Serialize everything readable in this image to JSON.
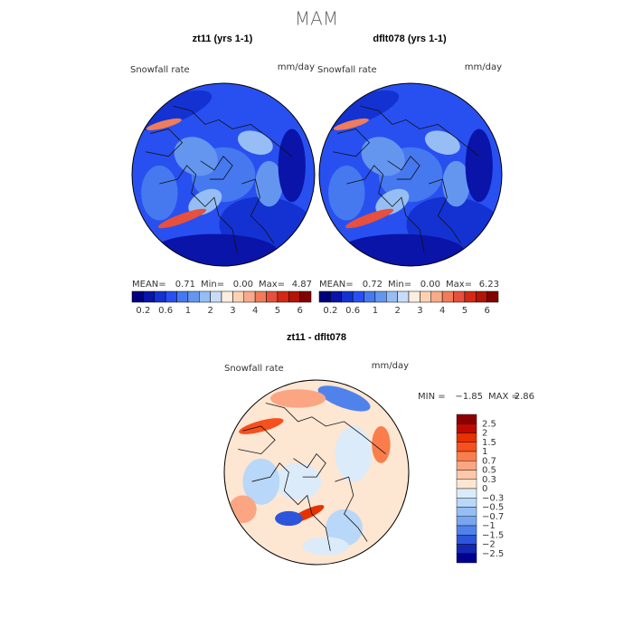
{
  "title": "MAM",
  "panels": [
    {
      "title": "zt11 (yrs 1-1)",
      "variable": "Snowfall rate",
      "units": "mm/day",
      "stats": {
        "mean_label": "MEAN=",
        "mean": "0.71",
        "min_label": "Min=",
        "min": "0.00",
        "max_label": "Max=",
        "max": "4.87"
      }
    },
    {
      "title": "dflt078 (yrs 1-1)",
      "variable": "Snowfall rate",
      "units": "mm/day",
      "stats": {
        "mean_label": "MEAN=",
        "mean": "0.72",
        "min_label": "Min=",
        "min": "0.00",
        "max_label": "Max=",
        "max": "6.23"
      }
    }
  ],
  "colorbar": {
    "labels": [
      "0.2",
      "0.6",
      "1",
      "2",
      "3",
      "4",
      "5",
      "6"
    ],
    "colors": [
      "#00007f",
      "#0a14a8",
      "#1432d2",
      "#2850f0",
      "#4678f0",
      "#6496f0",
      "#96bef5",
      "#c8dcf8",
      "#fdeee0",
      "#fcd2b4",
      "#f8aa8a",
      "#f07c5a",
      "#e6503c",
      "#d22814",
      "#b41408",
      "#820000"
    ]
  },
  "difference": {
    "title": "zt11 - dflt078",
    "variable": "Snowfall rate",
    "units": "mm/day",
    "stats": {
      "min_label": "MIN =",
      "min": "−1.85",
      "max_label": "MAX =",
      "max": "2.86"
    }
  },
  "diff_colorbar": {
    "labels": [
      "2.5",
      "2",
      "1.5",
      "1",
      "0.7",
      "0.5",
      "0.3",
      "0",
      "−0.3",
      "−0.5",
      "−0.7",
      "−1",
      "−1.5",
      "−2",
      "−2.5"
    ],
    "colors": [
      "#8c0000",
      "#be0a00",
      "#e63200",
      "#f5501e",
      "#fa7d4b",
      "#fca582",
      "#fdc8aa",
      "#fde6d2",
      "#dcebfa",
      "#b9d7f8",
      "#96bef5",
      "#7aa5f0",
      "#5082eb",
      "#2d55dc",
      "#1428b4",
      "#00008c"
    ]
  }
}
